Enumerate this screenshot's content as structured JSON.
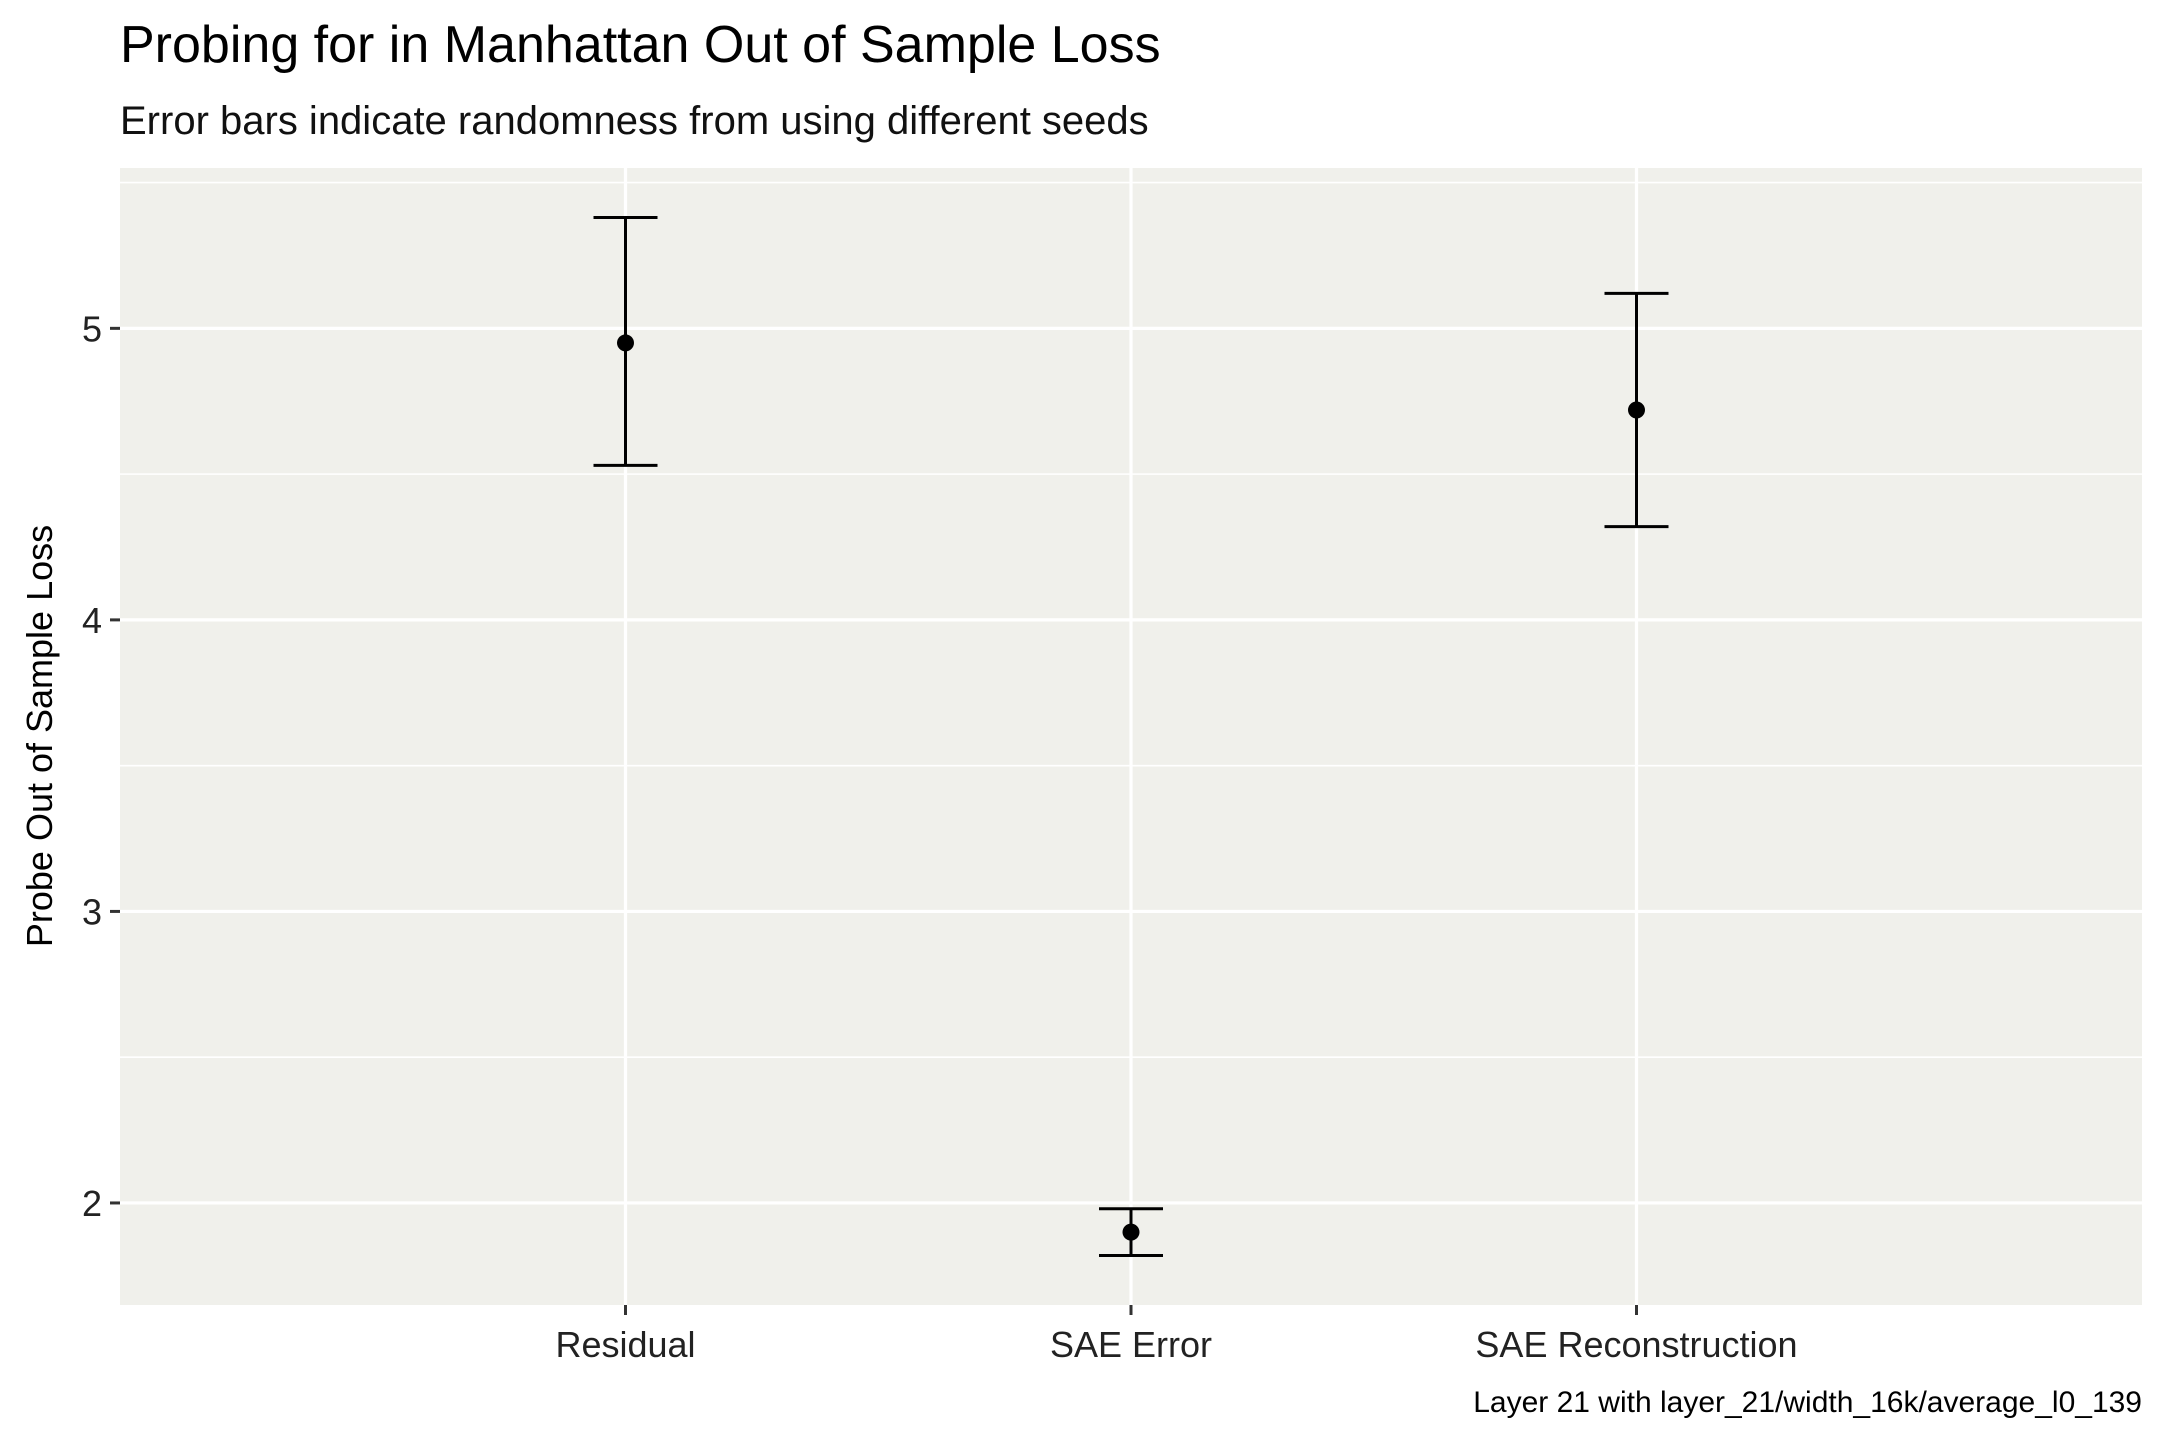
{
  "chart_data": {
    "type": "errorbar",
    "title": "Probing for in Manhattan Out of Sample Loss",
    "subtitle": "Error bars indicate randomness from using different seeds",
    "xlabel": "",
    "ylabel": "Probe Out of Sample Loss",
    "caption": "Layer 21 with layer_21/width_16k/average_l0_139",
    "categories": [
      "Residual",
      "SAE Error",
      "SAE Reconstruction"
    ],
    "values": [
      4.95,
      1.9,
      4.72
    ],
    "lower": [
      4.53,
      1.82,
      4.32
    ],
    "upper": [
      5.38,
      1.98,
      5.12
    ],
    "ylim": [
      1.65,
      5.55
    ],
    "yticks": [
      2,
      3,
      4,
      5
    ],
    "grid": true,
    "legend": "none",
    "colors": {
      "panel_background": "#f0f0eb",
      "grid": "#ffffff",
      "marks": "#000000"
    }
  }
}
